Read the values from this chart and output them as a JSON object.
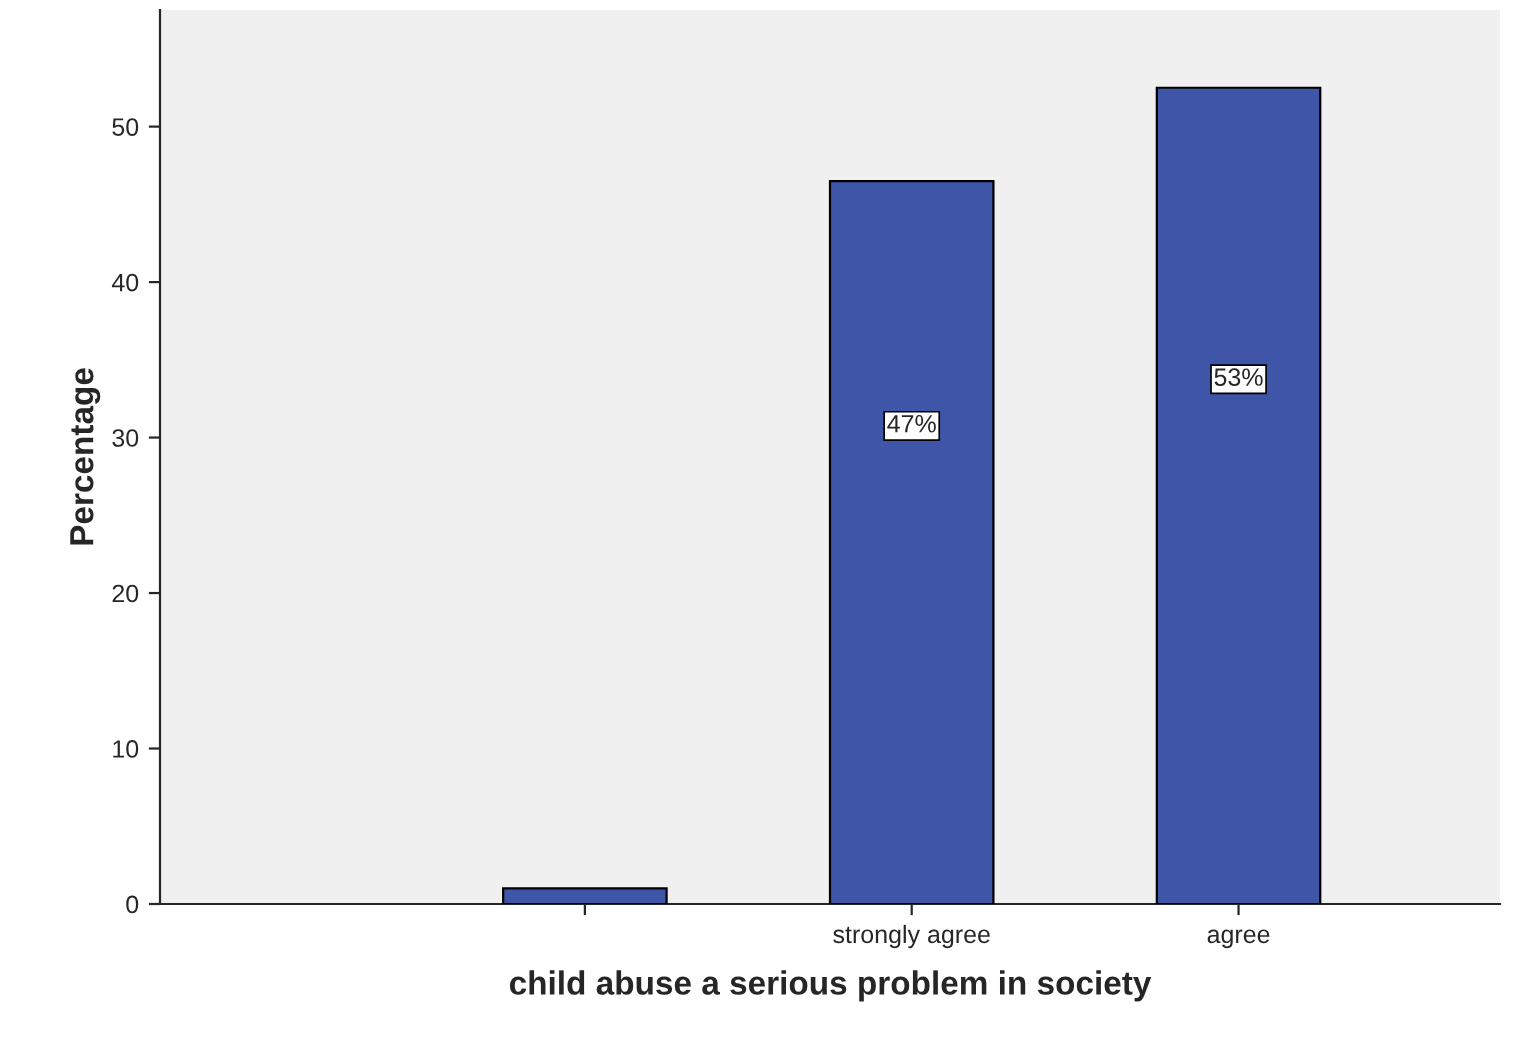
{
  "chart_data": {
    "type": "bar",
    "xlabel": "child abuse a serious problem in society",
    "ylabel": "Percentage",
    "categories": [
      null,
      "strongly agree",
      "agree"
    ],
    "values": [
      1.0,
      46.5,
      52.5
    ],
    "value_labels": [
      null,
      "47%",
      "53%"
    ],
    "color": "#3f56a8",
    "ylim": [
      0,
      57.5
    ],
    "yticks": [
      0,
      10,
      20,
      30,
      40,
      50
    ],
    "grid": false,
    "legend": false
  }
}
